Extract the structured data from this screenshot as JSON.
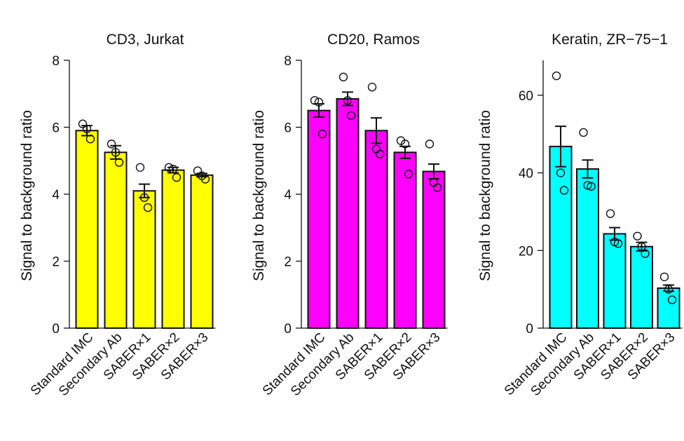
{
  "chart_data": [
    {
      "type": "bar",
      "title": "CD3, Jurkat",
      "ylabel": "Signal to background ratio",
      "ylim": [
        0,
        8
      ],
      "yticks": [
        0,
        2,
        4,
        6,
        8
      ],
      "color": "#FFFF00",
      "categories": [
        "Standard IMC",
        "Secondary Ab",
        "SABER×1",
        "SABER×2",
        "SABER×3"
      ],
      "values": [
        5.9,
        5.25,
        4.1,
        4.72,
        4.57
      ],
      "errors": [
        0.15,
        0.2,
        0.2,
        0.08,
        0.05
      ],
      "points": [
        [
          6.1,
          5.95,
          5.65
        ],
        [
          5.5,
          5.25,
          4.95
        ],
        [
          4.8,
          3.9,
          3.6
        ],
        [
          4.8,
          4.75,
          4.5
        ],
        [
          4.7,
          4.55,
          4.45
        ]
      ]
    },
    {
      "type": "bar",
      "title": "CD20, Ramos",
      "ylabel": "Signal to background ratio",
      "ylim": [
        0,
        8
      ],
      "yticks": [
        0,
        2,
        4,
        6,
        8
      ],
      "color": "#FF00FF",
      "categories": [
        "Standard IMC",
        "Secondary Ab",
        "SABER×1",
        "SABER×2",
        "SABER×3"
      ],
      "values": [
        6.5,
        6.85,
        5.9,
        5.25,
        4.68
      ],
      "errors": [
        0.2,
        0.2,
        0.38,
        0.18,
        0.22
      ],
      "points": [
        [
          6.8,
          6.75,
          5.8
        ],
        [
          7.5,
          6.8,
          6.35
        ],
        [
          7.2,
          5.35,
          5.2
        ],
        [
          5.6,
          5.5,
          4.6
        ],
        [
          5.5,
          4.35,
          4.2
        ]
      ]
    },
    {
      "type": "bar",
      "title": "Keratin, ZR−75−1",
      "ylabel": "Signal to background ratio",
      "ylim": [
        0,
        69
      ],
      "yticks": [
        0,
        20,
        40,
        60
      ],
      "color": "#00FFFF",
      "categories": [
        "Standard IMC",
        "Secondary Ab",
        "SABER×1",
        "SABER×2",
        "SABER×3"
      ],
      "values": [
        46.8,
        41.0,
        24.3,
        21.0,
        10.3
      ],
      "errors": [
        5.2,
        2.3,
        1.6,
        1.1,
        0.8
      ],
      "points": [
        [
          65,
          40,
          35.5
        ],
        [
          50.4,
          36.8,
          36.5
        ],
        [
          29.5,
          22.2,
          21.8
        ],
        [
          23.7,
          21,
          19.2
        ],
        [
          13.2,
          10,
          7.3
        ]
      ]
    }
  ]
}
